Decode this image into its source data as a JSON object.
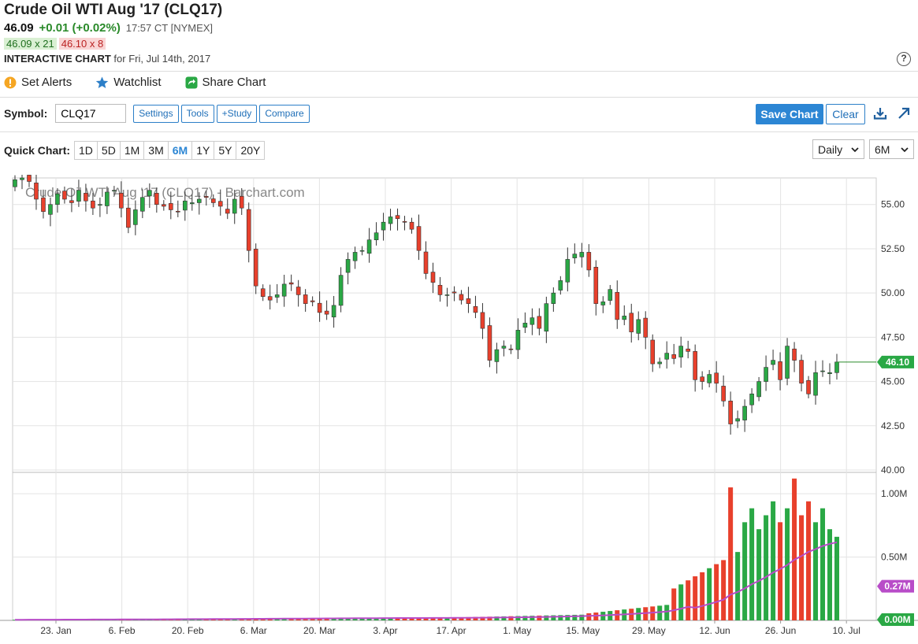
{
  "header": {
    "title": "Crude Oil WTI Aug '17 (CLQ17)",
    "last": "46.09",
    "change": "+0.01 (+0.02%)",
    "time": "17:57 CT [NYMEX]",
    "bid": "46.09 x 21",
    "ask": "46.10 x 8",
    "section_title": "INTERACTIVE CHART",
    "section_date": "for Fri, Jul 14th, 2017",
    "help_label": "?"
  },
  "actions": {
    "alerts_label": "Set Alerts",
    "watchlist_label": "Watchlist",
    "share_label": "Share Chart"
  },
  "toolbar": {
    "symbol_label": "Symbol:",
    "symbol_value": "CLQ17",
    "settings_label": "Settings",
    "tools_label": "Tools",
    "study_label": "+Study",
    "compare_label": "Compare",
    "save_label": "Save Chart",
    "clear_label": "Clear"
  },
  "quick_chart": {
    "label": "Quick Chart:",
    "periods": [
      "1D",
      "5D",
      "1M",
      "3M",
      "6M",
      "1Y",
      "5Y",
      "20Y"
    ],
    "active": "6M",
    "interval": "Daily",
    "range": "6M"
  },
  "colors": {
    "up": "#2aa845",
    "down": "#e8402c",
    "ma": "#b84cc8",
    "accent": "#2c86d4"
  },
  "chart_data": {
    "type": "candlestick",
    "watermark": "Crude Oil WTI Aug '17 (CLQ17) - Barchart.com",
    "price_axis": {
      "ticks": [
        "55.00",
        "52.50",
        "50.00",
        "47.50",
        "45.00",
        "42.50",
        "40.00"
      ],
      "range": [
        40,
        56.5
      ]
    },
    "volume_axis": {
      "ticks": [
        "1.00M",
        "0.50M"
      ],
      "range": [
        0,
        1.15
      ]
    },
    "x_ticks": [
      "23. Jan",
      "6. Feb",
      "20. Feb",
      "6. Mar",
      "20. Mar",
      "3. Apr",
      "17. Apr",
      "1. May",
      "15. May",
      "29. May",
      "12. Jun",
      "26. Jun",
      "10. Jul"
    ],
    "last_price_label": "46.10",
    "last_price": 46.1,
    "last_ma_label": "0.27M",
    "last_ma": 0.27,
    "zero_label": "0.00M",
    "closes": [
      56.4,
      56.5,
      56.3,
      55.3,
      54.6,
      55.0,
      55.6,
      55.3,
      55.1,
      55.8,
      55.2,
      54.8,
      55.0,
      55.7,
      55.8,
      54.8,
      53.7,
      54.7,
      55.4,
      55.8,
      55.0,
      54.9,
      54.7,
      54.6,
      55.2,
      55.1,
      55.3,
      55.4,
      55.1,
      54.9,
      54.5,
      55.3,
      54.8,
      52.4,
      50.4,
      49.8,
      49.6,
      49.9,
      50.5,
      50.5,
      49.9,
      49.4,
      49.5,
      48.9,
      48.8,
      49.3,
      51.0,
      51.9,
      52.3,
      52.4,
      53.0,
      53.4,
      54.0,
      54.3,
      54.2,
      54.0,
      53.6,
      52.4,
      51.1,
      50.6,
      49.9,
      49.9,
      50.0,
      49.6,
      49.4,
      48.9,
      48.0,
      46.2,
      46.8,
      47.0,
      46.8,
      47.9,
      48.3,
      48.6,
      48.0,
      49.4,
      50.0,
      50.7,
      51.9,
      52.2,
      52.3,
      51.3,
      49.4,
      49.5,
      50.2,
      48.5,
      48.7,
      47.8,
      48.5,
      47.5,
      46.0,
      46.1,
      46.6,
      46.3,
      47.0,
      46.7,
      45.1,
      45.0,
      45.4,
      44.9,
      43.9,
      42.6,
      42.9,
      43.6,
      44.3,
      45.0,
      45.8,
      46.2,
      45.1,
      47.0,
      46.2,
      44.9,
      44.3,
      45.5,
      45.6,
      45.5,
      46.1
    ]
  }
}
